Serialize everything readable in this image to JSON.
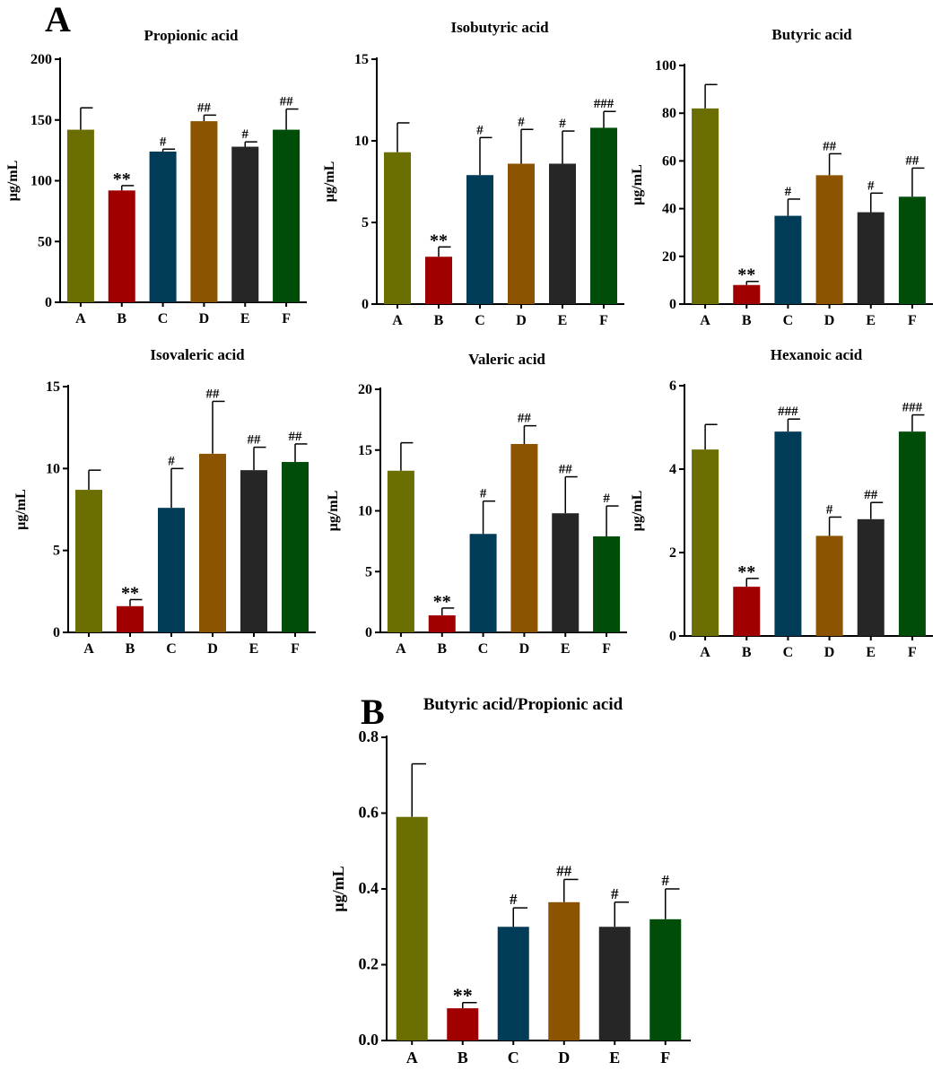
{
  "panel_labels": [
    "A",
    "B"
  ],
  "colors": {
    "A": "#6b6e00",
    "B": "#a10000",
    "C": "#003c57",
    "D": "#8c5400",
    "E": "#262626",
    "F": "#004d0a"
  },
  "chart_data": [
    {
      "type": "bar",
      "title": "Propionic acid",
      "ylabel": "μg/mL",
      "categories": [
        "A",
        "B",
        "C",
        "D",
        "E",
        "F"
      ],
      "values": [
        142,
        92,
        124,
        149,
        128,
        142
      ],
      "errors": [
        18,
        4,
        2,
        5,
        4,
        17
      ],
      "significance": [
        "",
        "**",
        "#",
        "##",
        "#",
        "##"
      ],
      "ylim": [
        0,
        200
      ],
      "yticks": [
        0,
        50,
        100,
        150,
        200
      ],
      "ytick_labels": [
        "0",
        "50",
        "100",
        "150",
        "200"
      ]
    },
    {
      "type": "bar",
      "title": "Isobutyric acid",
      "ylabel": "μg/mL",
      "categories": [
        "A",
        "B",
        "C",
        "D",
        "E",
        "F"
      ],
      "values": [
        9.3,
        2.9,
        7.9,
        8.6,
        8.6,
        10.8
      ],
      "errors": [
        1.8,
        0.6,
        2.3,
        2.1,
        2.0,
        1.0
      ],
      "significance": [
        "",
        "**",
        "#",
        "#",
        "#",
        "###"
      ],
      "ylim": [
        0,
        15
      ],
      "yticks": [
        0,
        5,
        10,
        15
      ],
      "ytick_labels": [
        "0",
        "5",
        "10",
        "15"
      ]
    },
    {
      "type": "bar",
      "title": "Butyric acid",
      "ylabel": "μg/mL",
      "categories": [
        "A",
        "B",
        "C",
        "D",
        "E",
        "F"
      ],
      "values": [
        82,
        8,
        37,
        54,
        38.5,
        45
      ],
      "errors": [
        10,
        1.5,
        7,
        9,
        8,
        12
      ],
      "significance": [
        "",
        "**",
        "#",
        "##",
        "#",
        "##"
      ],
      "ylim": [
        0,
        100
      ],
      "yticks": [
        0,
        20,
        40,
        60,
        80,
        100
      ],
      "ytick_labels": [
        "0",
        "20",
        "40",
        "60",
        "80",
        "100"
      ]
    },
    {
      "type": "bar",
      "title": "Isovaleric acid",
      "ylabel": "μg/mL",
      "categories": [
        "A",
        "B",
        "C",
        "D",
        "E",
        "F"
      ],
      "values": [
        8.7,
        1.6,
        7.6,
        10.9,
        9.9,
        10.4
      ],
      "errors": [
        1.2,
        0.4,
        2.4,
        3.2,
        1.4,
        1.1
      ],
      "significance": [
        "",
        "**",
        "#",
        "##",
        "##",
        "##"
      ],
      "ylim": [
        0,
        15
      ],
      "yticks": [
        0,
        5,
        10,
        15
      ],
      "ytick_labels": [
        "0",
        "5",
        "10",
        "15"
      ]
    },
    {
      "type": "bar",
      "title": "Valeric acid",
      "ylabel": "μg/mL",
      "categories": [
        "A",
        "B",
        "C",
        "D",
        "E",
        "F"
      ],
      "values": [
        13.3,
        1.4,
        8.1,
        15.5,
        9.8,
        7.9
      ],
      "errors": [
        2.3,
        0.6,
        2.7,
        1.5,
        3.0,
        2.5
      ],
      "significance": [
        "",
        "**",
        "#",
        "##",
        "##",
        "#"
      ],
      "ylim": [
        0,
        20
      ],
      "yticks": [
        0,
        5,
        10,
        15,
        20
      ],
      "ytick_labels": [
        "0",
        "5",
        "10",
        "15",
        "20"
      ]
    },
    {
      "type": "bar",
      "title": "Hexanoic acid",
      "ylabel": "μg/mL",
      "categories": [
        "A",
        "B",
        "C",
        "D",
        "E",
        "F"
      ],
      "values": [
        4.47,
        1.18,
        4.9,
        2.4,
        2.8,
        4.9
      ],
      "errors": [
        0.6,
        0.2,
        0.3,
        0.45,
        0.4,
        0.4
      ],
      "significance": [
        "",
        "**",
        "###",
        "#",
        "##",
        "###"
      ],
      "ylim": [
        0,
        6
      ],
      "yticks": [
        0,
        2,
        4,
        6
      ],
      "ytick_labels": [
        "0",
        "2",
        "4",
        "6"
      ]
    },
    {
      "type": "bar",
      "title": "Butyric acid/Propionic acid",
      "ylabel": "μg/mL",
      "categories": [
        "A",
        "B",
        "C",
        "D",
        "E",
        "F"
      ],
      "values": [
        0.59,
        0.085,
        0.3,
        0.365,
        0.3,
        0.32
      ],
      "errors": [
        0.14,
        0.015,
        0.05,
        0.06,
        0.065,
        0.08
      ],
      "significance": [
        "",
        "**",
        "#",
        "##",
        "#",
        "#"
      ],
      "ylim": [
        0,
        0.8
      ],
      "yticks": [
        0,
        0.2,
        0.4,
        0.6,
        0.8
      ],
      "ytick_labels": [
        "0.0",
        "0.2",
        "0.4",
        "0.6",
        "0.8"
      ]
    }
  ]
}
